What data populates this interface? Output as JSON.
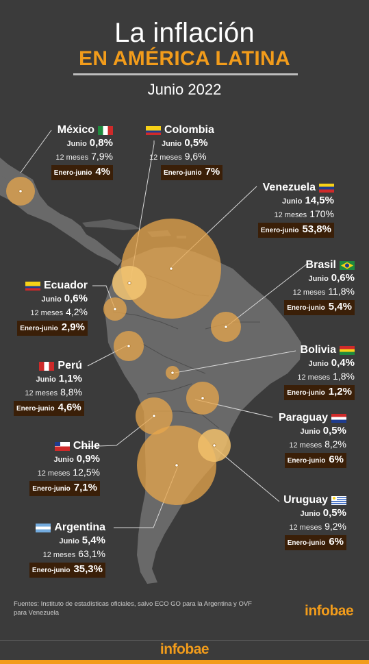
{
  "header": {
    "title_line1": "La inflación",
    "title_line2": "EN AMÉRICA LATINA",
    "subtitle": "Junio 2022"
  },
  "row_labels": {
    "junio": "Junio",
    "doce_meses": "12 meses",
    "enero_junio": "Enero-junio"
  },
  "countries": {
    "mexico": {
      "name": "México",
      "junio": "0,8%",
      "doce_meses": "7,9%",
      "enero_junio": "4%"
    },
    "colombia": {
      "name": "Colombia",
      "junio": "0,5%",
      "doce_meses": "9,6%",
      "enero_junio": "7%"
    },
    "venezuela": {
      "name": "Venezuela",
      "junio": "14,5%",
      "doce_meses": "170%",
      "enero_junio": "53,8%"
    },
    "brasil": {
      "name": "Brasil",
      "junio": "0,6%",
      "doce_meses": "11,8%",
      "enero_junio": "5,4%"
    },
    "ecuador": {
      "name": "Ecuador",
      "junio": "0,6%",
      "doce_meses": "4,2%",
      "enero_junio": "2,9%"
    },
    "bolivia": {
      "name": "Bolivia",
      "junio": "0,4%",
      "doce_meses": "1,8%",
      "enero_junio": "1,2%"
    },
    "peru": {
      "name": "Perú",
      "junio": "1,1%",
      "doce_meses": "8,8%",
      "enero_junio": "4,6%"
    },
    "paraguay": {
      "name": "Paraguay",
      "junio": "0,5%",
      "doce_meses": "8,2%",
      "enero_junio": "6%"
    },
    "chile": {
      "name": "Chile",
      "junio": "0,9%",
      "doce_meses": "12,5%",
      "enero_junio": "7,1%"
    },
    "uruguay": {
      "name": "Uruguay",
      "junio": "0,5%",
      "doce_meses": "9,2%",
      "enero_junio": "6%"
    },
    "argentina": {
      "name": "Argentina",
      "junio": "5,4%",
      "doce_meses": "63,1%",
      "enero_junio": "35,3%"
    }
  },
  "footer": {
    "sources": "Fuentes: Instituto de estadísticas oficiales, salvo ECO GO para la Argentina y OVF para Venezuela",
    "logo": "infobae",
    "logo_bottom": "infobae"
  },
  "colors": {
    "background": "#3b3b3b",
    "accent": "#f29c1b",
    "bubble": "#e8a74c",
    "land": "#696969",
    "value_box": "#3a1f08"
  }
}
